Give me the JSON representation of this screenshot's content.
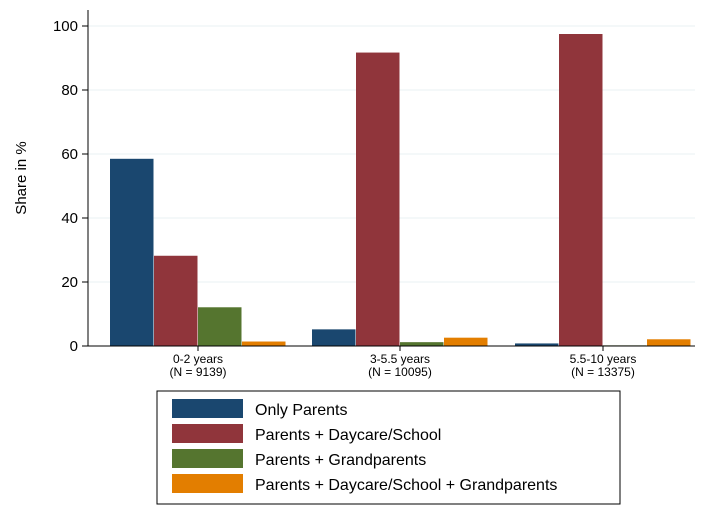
{
  "chart_data": {
    "type": "bar",
    "title": "",
    "xlabel": "",
    "ylabel": "Share in %",
    "ylim": [
      0,
      100
    ],
    "yticks": [
      "0",
      "20",
      "40",
      "60",
      "80",
      "100"
    ],
    "grid": true,
    "legend_position": "bottom",
    "categories": [
      {
        "label": "0-2 years",
        "n_label": "(N = 9139)"
      },
      {
        "label": "3-5.5 years",
        "n_label": "(N = 10095)"
      },
      {
        "label": "5.5-10 years",
        "n_label": "(N = 13375)"
      }
    ],
    "series": [
      {
        "name": "Only Parents",
        "color": "#1a476f",
        "values": [
          58.5,
          5.2,
          0.8
        ]
      },
      {
        "name": "Parents + Daycare/School",
        "color": "#90353b",
        "values": [
          28.2,
          91.7,
          97.5
        ]
      },
      {
        "name": "Parents + Grandparents",
        "color": "#55752f",
        "values": [
          12.1,
          1.2,
          0.2
        ]
      },
      {
        "name": "Parents + Daycare/School + Grandparents",
        "color": "#e37e00",
        "values": [
          1.4,
          2.6,
          2.1
        ]
      }
    ]
  }
}
